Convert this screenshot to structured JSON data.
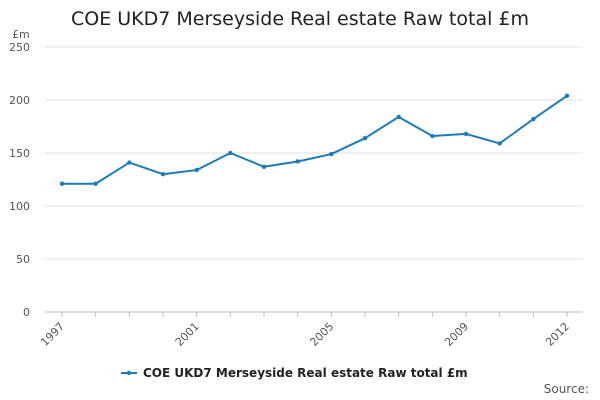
{
  "colors": {
    "series": "#1f7bb6"
  },
  "chart_data": {
    "type": "line",
    "title": "COE UKD7 Merseyside Real estate Raw total £m",
    "ylabel": "£m",
    "xlabel": "",
    "ylim": [
      0,
      250
    ],
    "yticks": [
      0,
      50,
      100,
      150,
      200,
      250
    ],
    "x": [
      1997,
      1998,
      1999,
      2000,
      2001,
      2002,
      2003,
      2004,
      2005,
      2006,
      2007,
      2008,
      2009,
      2010,
      2011,
      2012
    ],
    "xtick_labels": [
      "1997",
      "2001",
      "2005",
      "2009",
      "2012"
    ],
    "series": [
      {
        "name": "COE UKD7 Merseyside Real estate Raw total £m",
        "values": [
          121,
          121,
          141,
          130,
          134,
          150,
          137,
          142,
          149,
          164,
          184,
          166,
          168,
          159,
          182,
          204
        ]
      }
    ],
    "legend": "bottom-center",
    "grid": true,
    "source_label": "Source:"
  }
}
